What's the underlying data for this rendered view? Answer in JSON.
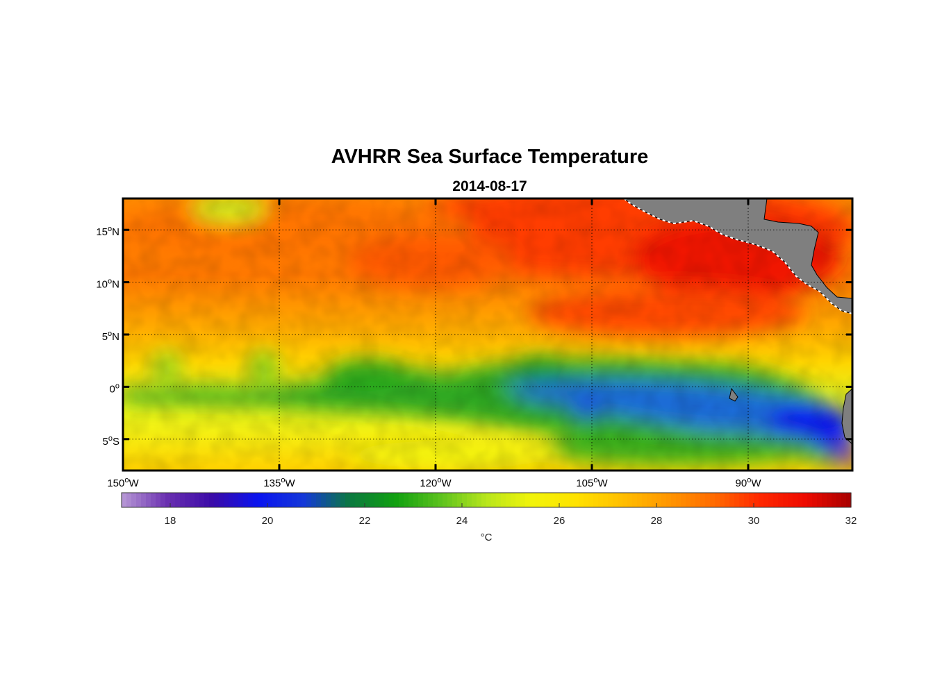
{
  "chart_data": {
    "type": "heatmap",
    "title": "AVHRR Sea Surface Temperature",
    "subtitle": "2014-08-17",
    "x_axis": {
      "range": [
        -150,
        -80
      ],
      "ticks": [
        {
          "value": -150,
          "num": "150",
          "unit": "o",
          "hemi": "W"
        },
        {
          "value": -135,
          "num": "135",
          "unit": "o",
          "hemi": "W"
        },
        {
          "value": -120,
          "num": "120",
          "unit": "o",
          "hemi": "W"
        },
        {
          "value": -105,
          "num": "105",
          "unit": "o",
          "hemi": "W"
        },
        {
          "value": -90,
          "num": "90",
          "unit": "o",
          "hemi": "W"
        }
      ]
    },
    "y_axis": {
      "range": [
        -8,
        18
      ],
      "ticks": [
        {
          "value": 15,
          "num": "15",
          "unit": "o",
          "hemi": "N"
        },
        {
          "value": 10,
          "num": "10",
          "unit": "o",
          "hemi": "N"
        },
        {
          "value": 5,
          "num": "5",
          "unit": "o",
          "hemi": "N"
        },
        {
          "value": 0,
          "num": "0",
          "unit": "o",
          "hemi": ""
        },
        {
          "value": -5,
          "num": "5",
          "unit": "o",
          "hemi": "S"
        }
      ]
    },
    "grid": true,
    "colorbar": {
      "min": 17,
      "max": 32,
      "ticks": [
        18,
        20,
        22,
        24,
        26,
        28,
        30,
        32
      ],
      "label": "°C",
      "colors": [
        "#b89ad6",
        "#6a2fb0",
        "#3a0aa8",
        "#0a14f0",
        "#1438d8",
        "#0a7840",
        "#10a010",
        "#5cc21e",
        "#b8e61c",
        "#f2f40a",
        "#ffe100",
        "#ffbe00",
        "#ff9600",
        "#ff6a00",
        "#ff2800",
        "#ee0a00",
        "#a80000"
      ]
    },
    "land_color": "#7f7f7f",
    "sst_field_description_points": [
      {
        "lon": -145,
        "lat": 12,
        "sst": 28.2
      },
      {
        "lon": -115,
        "lat": 14,
        "sst": 29.0
      },
      {
        "lon": -100,
        "lat": 16,
        "sst": 30.5
      },
      {
        "lon": -90,
        "lat": 12,
        "sst": 30.2
      },
      {
        "lon": -140,
        "lat": 0,
        "sst": 25.2
      },
      {
        "lon": -125,
        "lat": -1,
        "sst": 24.2
      },
      {
        "lon": -110,
        "lat": -1,
        "sst": 23.2
      },
      {
        "lon": -104,
        "lat": -2,
        "sst": 21.5
      },
      {
        "lon": -85,
        "lat": -4,
        "sst": 20.5
      },
      {
        "lon": -81,
        "lat": -7,
        "sst": 18.0
      },
      {
        "lon": -140,
        "lat": -6,
        "sst": 26.8
      },
      {
        "lon": -110,
        "lat": -7,
        "sst": 25.6
      }
    ]
  }
}
